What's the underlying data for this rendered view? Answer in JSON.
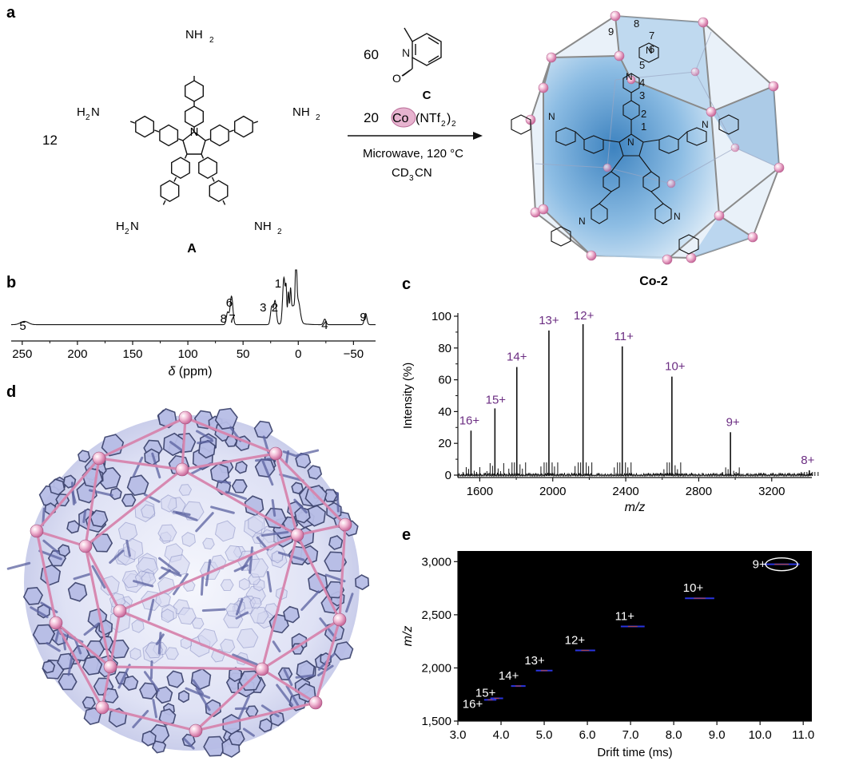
{
  "panels": {
    "a": "a",
    "b": "b",
    "c": "c",
    "d": "d",
    "e": "e"
  },
  "scheme": {
    "stoich_A": "12",
    "stoich_C": "60",
    "stoich_Co": "20",
    "co_label": "Co",
    "ntf2": "(NTf",
    "ntf2_sub": "2",
    "ntf2_close": ")",
    "ntf2_sub2": "2",
    "conditions_line1": "Microwave, 120 °C",
    "conditions_cd3": "CD",
    "conditions_sub": "3",
    "conditions_cn": "CN",
    "compound_A": "A",
    "compound_C": "C",
    "product": "Co-2",
    "amine": "NH",
    "amine_sub": "2",
    "amine_left_H": "H",
    "amine_left_N": "N",
    "pyrrole_N": "N",
    "ald_N": "N",
    "ald_O": "O",
    "atom_labels": [
      "9",
      "8",
      "7",
      "6",
      "5",
      "4",
      "3",
      "2",
      "1"
    ],
    "cage_N": "N"
  },
  "nmr": {
    "xlabel_delta": "δ",
    "xlabel_rest": " (ppm)",
    "ticks": [
      "250",
      "200",
      "150",
      "100",
      "50",
      "0",
      "−50"
    ],
    "peak_labels": [
      "5",
      "8",
      "7",
      "6",
      "3",
      "2",
      "1",
      "4",
      "9"
    ]
  },
  "chart_data": [
    {
      "type": "line",
      "panel": "b",
      "xlabel": "δ (ppm)",
      "ylabel": "",
      "xlim": [
        260,
        -70
      ],
      "x_reversed": true,
      "x_ticks": [
        250,
        200,
        150,
        100,
        50,
        0,
        -50
      ],
      "peaks": [
        {
          "label": "5",
          "x": 248,
          "height": 0.06
        },
        {
          "label": "8",
          "x": 64,
          "height": 0.22
        },
        {
          "label": "7",
          "x": 61,
          "height": 0.26
        },
        {
          "label": "6",
          "x": 60,
          "height": 0.3
        },
        {
          "label": "3",
          "x": 24,
          "height": 0.32
        },
        {
          "label": "2",
          "x": 21,
          "height": 0.42
        },
        {
          "label": "1",
          "x": 13,
          "height": 0.82
        },
        {
          "label": "4",
          "x": -24,
          "height": 0.1
        },
        {
          "label": "9",
          "x": -61,
          "height": 0.2
        }
      ]
    },
    {
      "type": "line",
      "panel": "c",
      "xlabel": "m/z",
      "ylabel": "Intensity (%)",
      "xlim": [
        1480,
        3420
      ],
      "ylim": [
        0,
        100
      ],
      "x_ticks": [
        1600,
        2000,
        2400,
        2800,
        3200
      ],
      "y_ticks": [
        0,
        20,
        40,
        60,
        80,
        100
      ],
      "peaks": [
        {
          "charge": "16+",
          "x": 1552,
          "y": 28
        },
        {
          "charge": "15+",
          "x": 1683,
          "y": 42
        },
        {
          "charge": "14+",
          "x": 1803,
          "y": 68
        },
        {
          "charge": "13+",
          "x": 1979,
          "y": 91
        },
        {
          "charge": "12+",
          "x": 2166,
          "y": 95
        },
        {
          "charge": "11+",
          "x": 2381,
          "y": 81
        },
        {
          "charge": "10+",
          "x": 2653,
          "y": 62
        },
        {
          "charge": "9+",
          "x": 2974,
          "y": 27
        },
        {
          "charge": "8+",
          "x": 3406,
          "y": 3
        }
      ]
    },
    {
      "type": "scatter",
      "panel": "e",
      "xlabel": "Drift time (ms)",
      "ylabel": "m/z",
      "xlim": [
        3.0,
        11.2
      ],
      "ylim": [
        1500,
        3100
      ],
      "x_ticks": [
        3.0,
        4.0,
        5.0,
        6.0,
        7.0,
        8.0,
        9.0,
        10.0,
        11.0
      ],
      "y_ticks": [
        1500,
        2000,
        2500,
        3000
      ],
      "points": [
        {
          "charge": "16+",
          "x": 3.75,
          "y": 1700
        },
        {
          "charge": "15+",
          "x": 3.9,
          "y": 1714
        },
        {
          "charge": "14+",
          "x": 4.4,
          "y": 1830
        },
        {
          "charge": "13+",
          "x": 5.0,
          "y": 1975
        },
        {
          "charge": "12+",
          "x": 5.95,
          "y": 2165
        },
        {
          "charge": "11+",
          "x": 7.05,
          "y": 2390
        },
        {
          "charge": "10+",
          "x": 8.6,
          "y": 2655
        },
        {
          "charge": "9+",
          "x": 10.5,
          "y": 2975
        }
      ]
    }
  ],
  "ms": {
    "ylabel": "Intensity (%)",
    "xlabel": "m/z",
    "x_ticks": [
      "1600",
      "2000",
      "2400",
      "2800",
      "3200"
    ],
    "y_ticks": [
      "0",
      "20",
      "40",
      "60",
      "80",
      "100"
    ]
  },
  "im": {
    "xlabel": "Drift time (ms)",
    "ylabel": "m/z",
    "x_ticks": [
      "3.0",
      "4.0",
      "5.0",
      "6.0",
      "7.0",
      "8.0",
      "9.0",
      "10.0",
      "11.0"
    ],
    "y_ticks": [
      "1,500",
      "2,000",
      "2,500",
      "3,000"
    ]
  },
  "colors": {
    "charge_label": "#6b2d82",
    "cage_blue": "#3d8ccf",
    "cage_pink": "#e6a9c8",
    "crystal_blue": "#9fa6d9",
    "crystal_pink": "#d77fa8",
    "im_bg": "#000000"
  }
}
